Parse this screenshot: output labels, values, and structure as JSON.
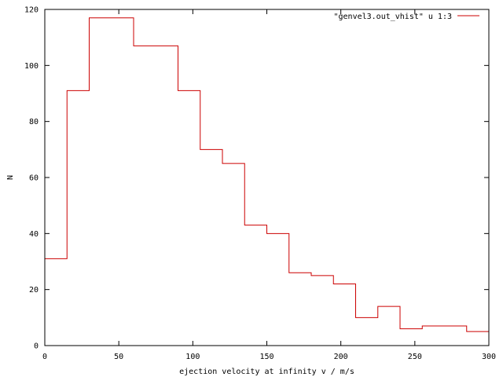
{
  "chart_data": {
    "type": "line",
    "style": "step-histogram",
    "title": "",
    "xlabel": "ejection velocity at infinity v / m/s",
    "ylabel": "N",
    "xlim": [
      0,
      300
    ],
    "ylim": [
      0,
      120
    ],
    "x_ticks": [
      0,
      50,
      100,
      150,
      200,
      250,
      300
    ],
    "y_ticks": [
      0,
      20,
      40,
      60,
      80,
      100,
      120
    ],
    "grid": false,
    "legend_position": "top-right",
    "series": [
      {
        "name": "\"genvel3.out_vhist\" u 1:3",
        "color": "#cc0000",
        "bin_edges": [
          0,
          15,
          30,
          60,
          90,
          105,
          120,
          135,
          150,
          165,
          180,
          195,
          210,
          225,
          240,
          255,
          285,
          300
        ],
        "values": [
          31,
          91,
          117,
          107,
          91,
          70,
          65,
          43,
          40,
          26,
          25,
          22,
          10,
          14,
          6,
          7,
          5
        ]
      }
    ]
  }
}
